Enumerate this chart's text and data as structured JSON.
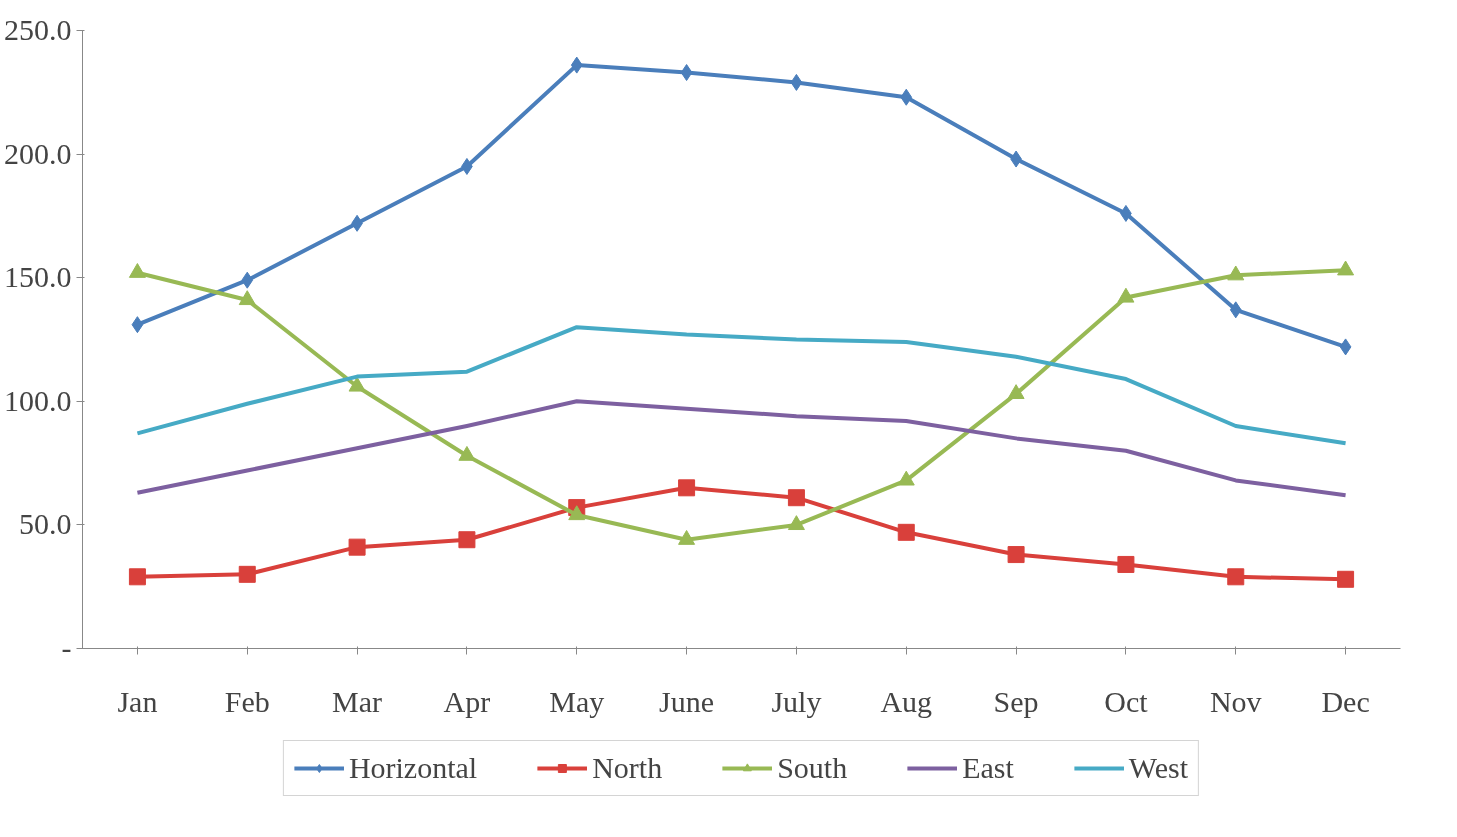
{
  "chart_data": {
    "type": "line",
    "categories": [
      "Jan",
      "Feb",
      "Mar",
      "Apr",
      "May",
      "June",
      "July",
      "Aug",
      "Sep",
      "Oct",
      "Nov",
      "Dec"
    ],
    "ylim": [
      0,
      250
    ],
    "yticks": [
      {
        "value": 0,
        "label": "-"
      },
      {
        "value": 50,
        "label": "50.0"
      },
      {
        "value": 100,
        "label": "100.0"
      },
      {
        "value": 150,
        "label": "150.0"
      },
      {
        "value": 200,
        "label": "200.0"
      },
      {
        "value": 250,
        "label": "250.0"
      }
    ],
    "grid": false,
    "legend": "bottom",
    "series": [
      {
        "name": "Horizontal",
        "color": "#4a7ebb",
        "marker": "diamond",
        "values": [
          131,
          149,
          172,
          195,
          236,
          233,
          229,
          223,
          198,
          176,
          137,
          122
        ]
      },
      {
        "name": "North",
        "color": "#d9403b",
        "marker": "square",
        "values": [
          29,
          30,
          41,
          44,
          57,
          65,
          61,
          47,
          38,
          34,
          29,
          28
        ]
      },
      {
        "name": "South",
        "color": "#98b954",
        "marker": "triangle",
        "values": [
          152,
          141,
          106,
          78,
          54,
          44,
          50,
          68,
          103,
          142,
          151,
          153
        ]
      },
      {
        "name": "East",
        "color": "#7d60a0",
        "marker": "none",
        "values": [
          63,
          72,
          81,
          90,
          100,
          97,
          94,
          92,
          85,
          80,
          68,
          62
        ]
      },
      {
        "name": "West",
        "color": "#46aac5",
        "marker": "none",
        "values": [
          87,
          99,
          110,
          112,
          130,
          127,
          125,
          124,
          118,
          109,
          90,
          83
        ]
      }
    ]
  }
}
